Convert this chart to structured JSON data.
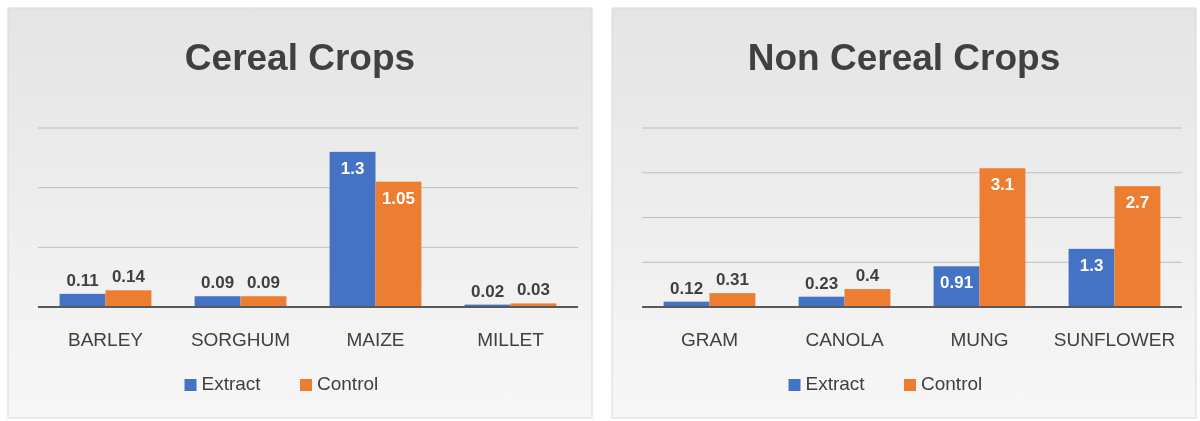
{
  "chart_data": [
    {
      "type": "bar",
      "title": "Cereal Crops",
      "categories": [
        "BARLEY",
        "SORGHUM",
        "MAIZE",
        "MILLET"
      ],
      "series": [
        {
          "name": "Extract",
          "color": "#4472c4",
          "values": [
            0.11,
            0.09,
            1.3,
            0.02
          ]
        },
        {
          "name": "Control",
          "color": "#ed7d31",
          "values": [
            0.14,
            0.09,
            1.05,
            0.03
          ]
        }
      ],
      "ylim": [
        0,
        1.5
      ],
      "yticks": [
        {
          "value": 0,
          "label": null
        },
        {
          "value": 0.5,
          "label": null
        },
        {
          "value": 1,
          "label": null
        },
        {
          "value": 1.5,
          "label": null
        }
      ],
      "grid": "y",
      "tick_labels": "x",
      "data_labels": true,
      "legend": "bottom"
    },
    {
      "type": "bar",
      "title": "Non Cereal Crops",
      "categories": [
        "GRAM",
        "CANOLA",
        "MUNG",
        "SUNFLOWER"
      ],
      "series": [
        {
          "name": "Extract",
          "color": "#4472c4",
          "values": [
            0.12,
            0.23,
            0.91,
            1.3
          ]
        },
        {
          "name": "Control",
          "color": "#ed7d31",
          "values": [
            0.31,
            0.4,
            3.1,
            2.7
          ]
        }
      ],
      "ylim": [
        0,
        4
      ],
      "yticks": [
        {
          "value": 0,
          "label": null
        },
        {
          "value": 1,
          "label": null
        },
        {
          "value": 2,
          "label": null
        },
        {
          "value": 3,
          "label": null
        },
        {
          "value": 4,
          "label": null
        }
      ],
      "grid": "y",
      "tick_labels": "x",
      "data_labels": true,
      "legend": "bottom"
    }
  ]
}
